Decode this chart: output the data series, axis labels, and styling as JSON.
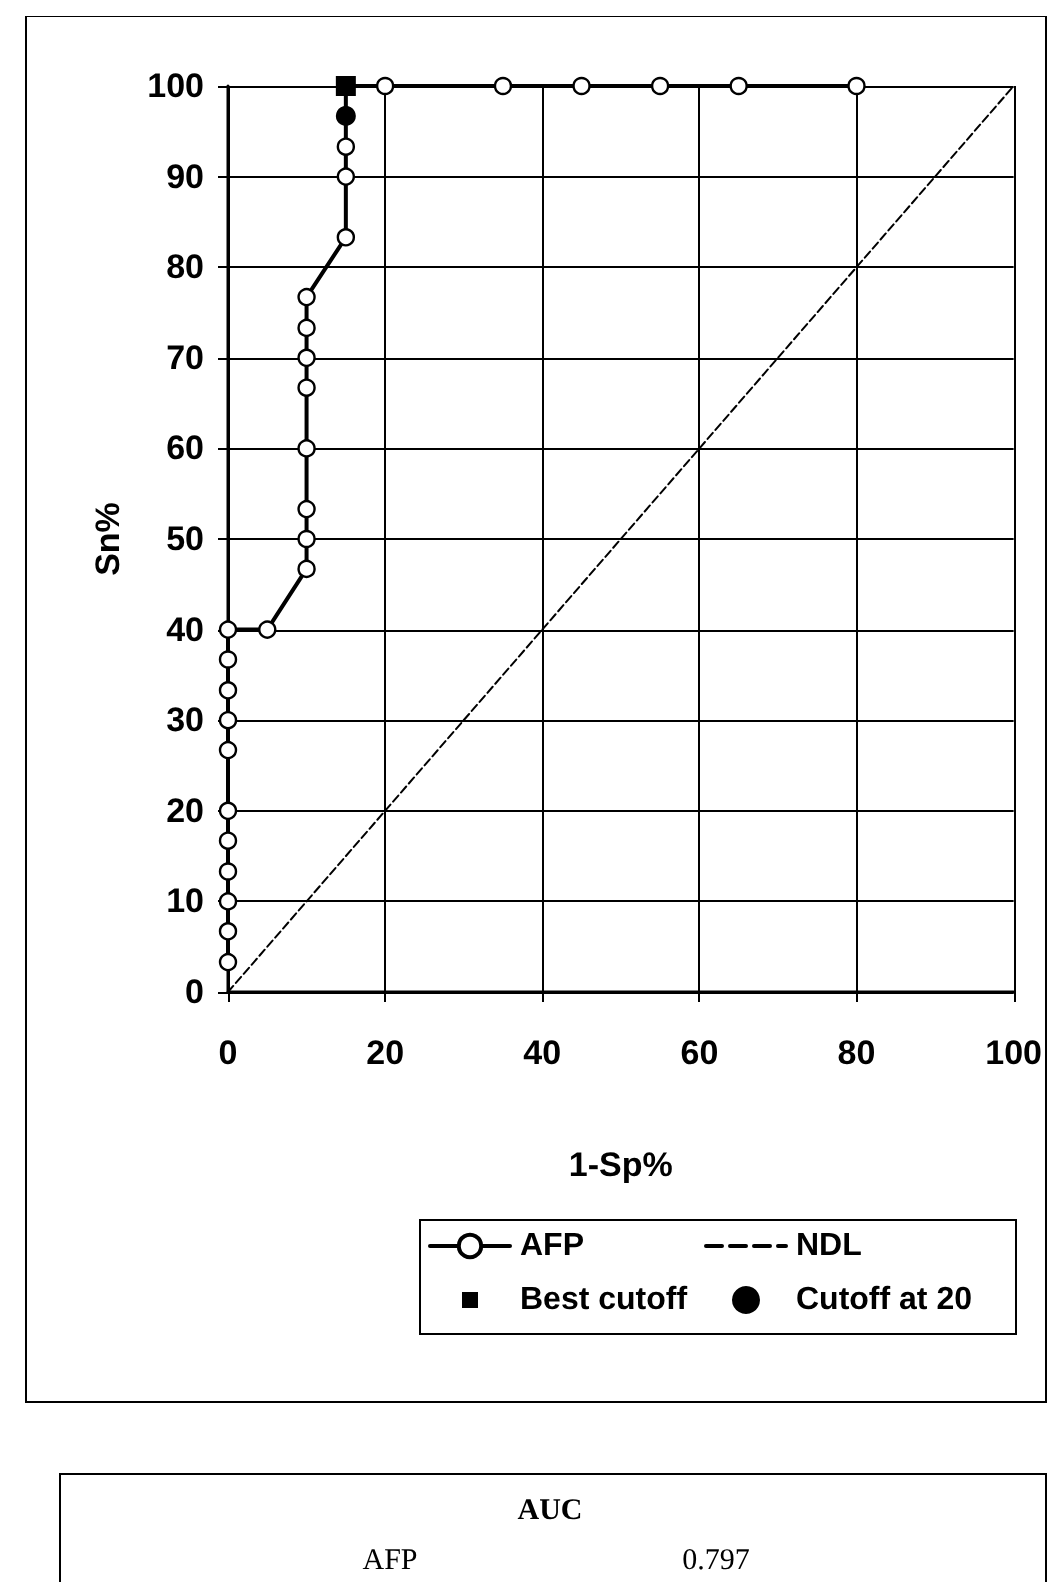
{
  "chart_data": {
    "type": "line",
    "xlabel": "1-Sp%",
    "ylabel": "Sn%",
    "xlim": [
      0,
      100
    ],
    "xticks": [
      0,
      20,
      40,
      60,
      80,
      100
    ],
    "ylim": [
      0,
      100
    ],
    "yticks": [
      0,
      10,
      20,
      30,
      40,
      50,
      60,
      70,
      80,
      90,
      100
    ],
    "grid": true,
    "legend": "bottom",
    "series": [
      {
        "name": "AFP",
        "type": "line",
        "color": "#000000",
        "marker": "circle",
        "line_style": "solid",
        "x": [
          0,
          0,
          0,
          0,
          0,
          0,
          0,
          0,
          0,
          0,
          0,
          5,
          10,
          10,
          10,
          10,
          10,
          10,
          10,
          10,
          15,
          15,
          15,
          15,
          15,
          20,
          35,
          45,
          55,
          65,
          80
        ],
        "values": [
          3.3,
          6.7,
          10,
          13.3,
          16.7,
          20,
          26.7,
          30,
          33.3,
          36.7,
          40,
          40,
          46.7,
          50,
          53.3,
          60,
          66.7,
          70,
          73.3,
          76.7,
          83.3,
          90,
          93.3,
          96.7,
          100,
          100,
          100,
          100,
          100,
          100,
          100
        ]
      },
      {
        "name": "NDL",
        "type": "line",
        "color": "#000000",
        "marker": "none",
        "line_style": "dashed",
        "x": [
          0,
          100
        ],
        "values": [
          0,
          100
        ]
      },
      {
        "name": "Best cutoff",
        "type": "scatter",
        "color": "#000000",
        "marker": "square",
        "x": [
          15
        ],
        "values": [
          100
        ]
      },
      {
        "name": "Cutoff at 20",
        "type": "scatter",
        "color": "#000000",
        "marker": "circle",
        "x": [
          15
        ],
        "values": [
          96.7
        ]
      }
    ],
    "annotations": [
      "AUC",
      "AFP",
      "0.797"
    ]
  }
}
